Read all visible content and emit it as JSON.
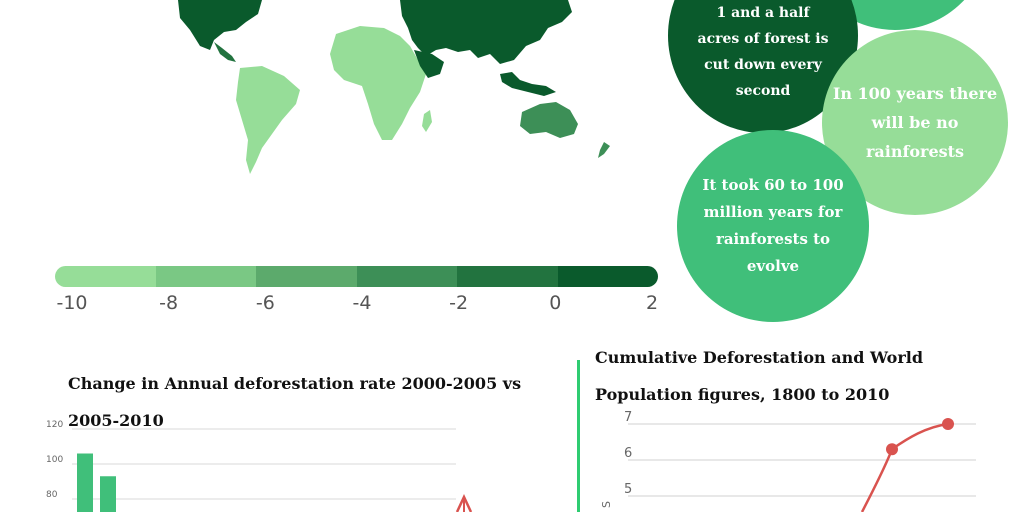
{
  "colors": {
    "scale": [
      "#96dd98",
      "#7ac884",
      "#5caa6c",
      "#3d8f57",
      "#22733f",
      "#0a5a2c"
    ],
    "bar": "#40bf7a",
    "accent_line": "#d9534f",
    "divider": "#2ecc71"
  },
  "legend": {
    "labels": [
      "-10",
      "-8",
      "-6",
      "-4",
      "-2",
      "0",
      "2"
    ]
  },
  "bubbles": {
    "cut": "1 and a half acres of forest is cut down every second",
    "no_rainforests": "In 100 years there will be no rainforests",
    "evolve": "It took 60 to 100 million years for rainforests to evolve"
  },
  "left_chart": {
    "title": "Change in Annual deforestation rate 2000-2005 vs 2005-2010",
    "y_ticks": [
      "120",
      "100",
      "80"
    ]
  },
  "right_chart": {
    "title": "Cumulative Deforestation and World Population figures, 1800 to 2010",
    "y_ticks": [
      "7",
      "6",
      "5"
    ],
    "axis_fragment": "S"
  },
  "chart_data": [
    {
      "type": "bar",
      "title": "Change in Annual deforestation rate 2000-2005 vs 2005-2010",
      "ylim": [
        0,
        120
      ],
      "y_ticks": [
        80,
        100,
        120
      ],
      "categories": [
        "",
        ""
      ],
      "values": [
        106,
        93
      ],
      "grid": true
    },
    {
      "type": "line",
      "title": "Cumulative Deforestation and World Population figures, 1800 to 2010",
      "y_ticks": [
        5,
        6,
        7
      ],
      "ylim": [
        4.5,
        7.2
      ],
      "series": [
        {
          "values": [
            6.3,
            7.0
          ]
        }
      ],
      "grid": true
    }
  ]
}
